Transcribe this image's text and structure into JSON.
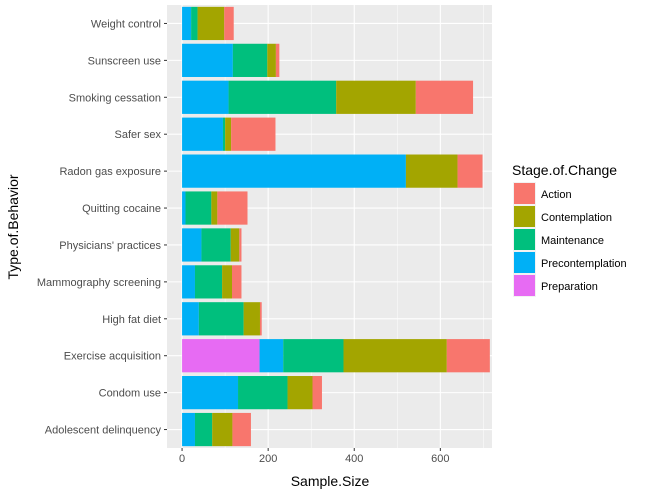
{
  "chart_data": {
    "type": "bar",
    "orientation": "horizontal",
    "stacked": true,
    "xlabel": "Sample.Size",
    "ylabel": "Type.of.Behavior",
    "xlim": [
      -35,
      720
    ],
    "xticks": [
      0,
      200,
      400,
      600
    ],
    "grid": true,
    "legend_position": "right",
    "legend_title": "Stage.of.Change",
    "categories": [
      "Weight control",
      "Sunscreen use",
      "Smoking cessation",
      "Safer sex",
      "Radon gas exposure",
      "Quitting cocaine",
      "Physicians' practices",
      "Mammography screening",
      "High fat diet",
      "Exercise acquisition",
      "Condom use",
      "Adolescent delinquency"
    ],
    "stack_order": [
      "Preparation",
      "Precontemplation",
      "Maintenance",
      "Contemplation",
      "Action"
    ],
    "legend_order": [
      "Action",
      "Contemplation",
      "Maintenance",
      "Precontemplation",
      "Preparation"
    ],
    "series": [
      {
        "name": "Action",
        "color": "#F8766D",
        "values": [
          22,
          8,
          133,
          103,
          58,
          70,
          5,
          22,
          4,
          100,
          22,
          43
        ]
      },
      {
        "name": "Contemplation",
        "color": "#A3A500",
        "values": [
          62,
          20,
          185,
          14,
          120,
          14,
          20,
          23,
          38,
          240,
          58,
          47
        ]
      },
      {
        "name": "Maintenance",
        "color": "#00BF7D",
        "values": [
          15,
          80,
          250,
          5,
          0,
          60,
          68,
          63,
          104,
          140,
          115,
          40
        ]
      },
      {
        "name": "Precontemplation",
        "color": "#00B0F6",
        "values": [
          21,
          118,
          108,
          95,
          520,
          8,
          45,
          30,
          39,
          55,
          130,
          30
        ]
      },
      {
        "name": "Preparation",
        "color": "#E76BF3",
        "values": [
          0,
          0,
          0,
          0,
          0,
          0,
          0,
          0,
          0,
          180,
          0,
          0
        ]
      }
    ]
  }
}
